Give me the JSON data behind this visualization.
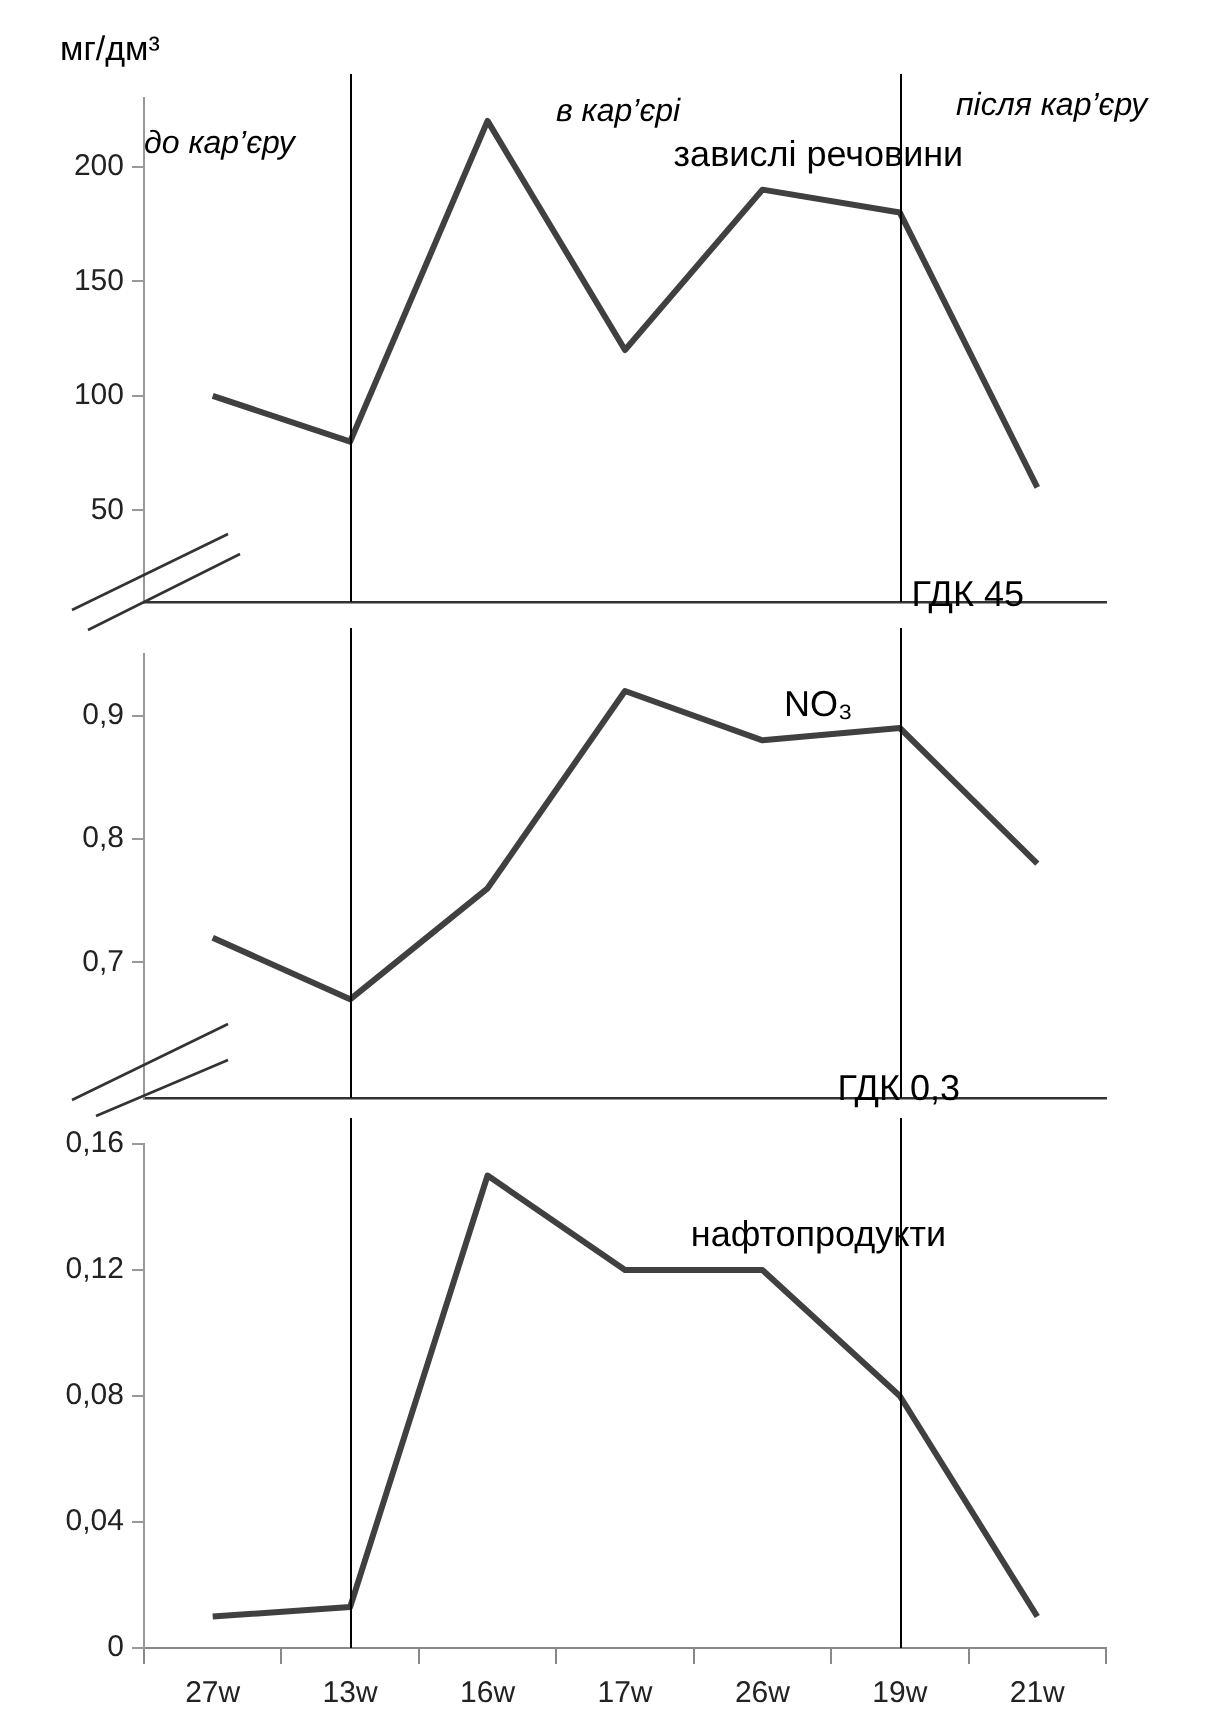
{
  "chart_data": [
    {
      "type": "line",
      "ylabel": "мг/дм³",
      "categories": [
        "27w",
        "13w",
        "16w",
        "17w",
        "26w",
        "19w",
        "21w"
      ],
      "series": [
        {
          "name": "завислі речовини",
          "color": "#404040",
          "values": [
            100,
            80,
            220,
            120,
            190,
            180,
            60
          ]
        }
      ],
      "ylim": [
        10,
        230
      ],
      "yticks": [
        50,
        100,
        150,
        200
      ],
      "tick_labels": "y",
      "marker": "none",
      "ref_lines": [
        {
          "axis": "x",
          "value": "13w",
          "label": null,
          "color": "#000000"
        },
        {
          "axis": "x",
          "value": "19w",
          "label": null,
          "color": "#000000"
        }
      ],
      "annotations": [
        "до кар’єру",
        "в кар’єрі",
        "після кар’єру",
        "ГДК 45"
      ]
    },
    {
      "type": "line",
      "categories": [
        "27w",
        "13w",
        "16w",
        "17w",
        "26w",
        "19w",
        "21w"
      ],
      "series": [
        {
          "name": "NO₃",
          "color": "#404040",
          "values": [
            0.72,
            0.67,
            0.76,
            0.92,
            0.88,
            0.89,
            0.78
          ]
        }
      ],
      "ylim": [
        0.59,
        0.95
      ],
      "yticks": [
        {
          "value": 0.7,
          "label": "0,7"
        },
        {
          "value": 0.8,
          "label": "0,8"
        },
        {
          "value": 0.9,
          "label": "0,9"
        }
      ],
      "tick_labels": "y",
      "marker": "none",
      "ref_lines": [
        {
          "axis": "x",
          "value": "13w",
          "label": null,
          "color": "#000000"
        },
        {
          "axis": "x",
          "value": "19w",
          "label": null,
          "color": "#000000"
        }
      ],
      "annotations": [
        "ГДК 0,3"
      ]
    },
    {
      "type": "line",
      "categories": [
        "27w",
        "13w",
        "16w",
        "17w",
        "26w",
        "19w",
        "21w"
      ],
      "series": [
        {
          "name": "нафтопродукти",
          "color": "#404040",
          "values": [
            0.01,
            0.013,
            0.15,
            0.12,
            0.12,
            0.08,
            0.01
          ]
        }
      ],
      "ylim": [
        0,
        0.16
      ],
      "yticks": [
        0,
        {
          "value": 0.04,
          "label": "0,04"
        },
        {
          "value": 0.08,
          "label": "0,08"
        },
        {
          "value": 0.12,
          "label": "0,12"
        },
        {
          "value": 0.16,
          "label": "0,16"
        }
      ],
      "marker": "none",
      "ref_lines": [
        {
          "axis": "x",
          "value": "13w",
          "label": null,
          "color": "#000000"
        },
        {
          "axis": "x",
          "value": "19w",
          "label": null,
          "color": "#000000"
        }
      ]
    }
  ]
}
